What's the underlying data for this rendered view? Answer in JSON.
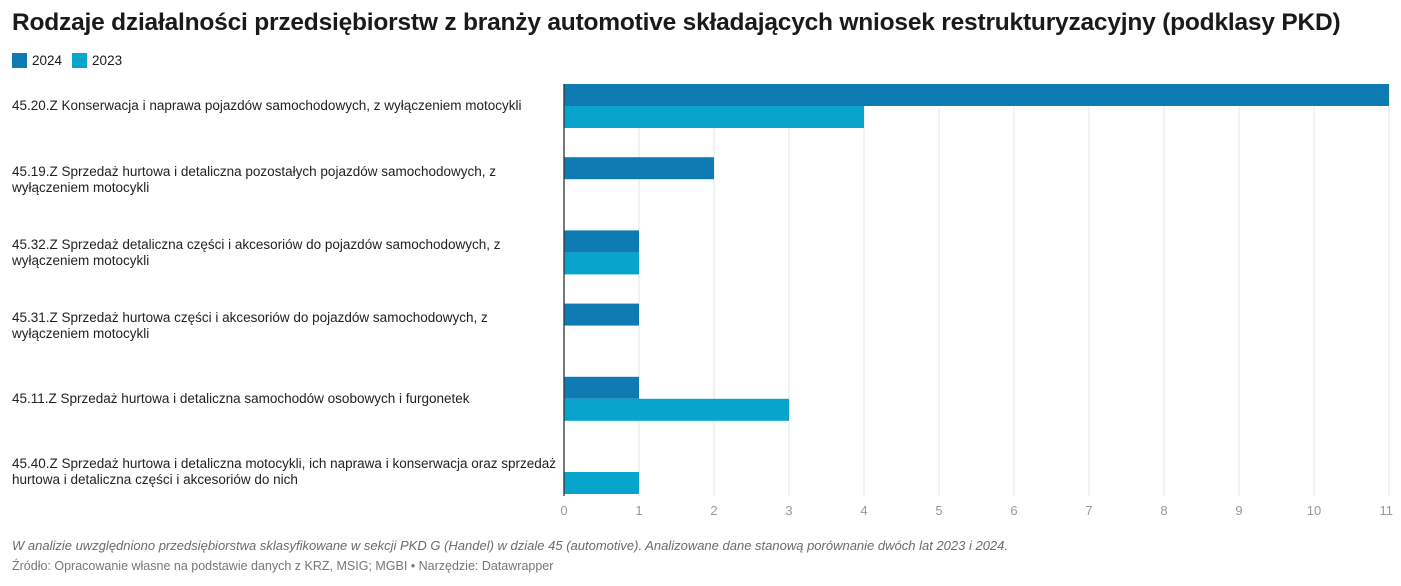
{
  "chart_data": {
    "type": "bar",
    "orientation": "horizontal",
    "title": "Rodzaje działalności przedsiębiorstw z branży automotive składających wniosek restrukturyzacyjny (podklasy PKD)",
    "categories": [
      "45.20.Z Konserwacja i naprawa pojazdów samochodowych, z wyłączeniem motocykli",
      "45.19.Z Sprzedaż hurtowa i detaliczna pozostałych pojazdów samochodowych, z wyłączeniem motocykli",
      "45.32.Z Sprzedaż detaliczna części i akcesoriów do pojazdów samochodowych, z wyłączeniem motocykli",
      "45.31.Z Sprzedaż hurtowa części i akcesoriów do pojazdów samochodowych, z wyłączeniem motocykli",
      "45.11.Z Sprzedaż hurtowa i detaliczna samochodów osobowych i furgonetek",
      "45.40.Z Sprzedaż hurtowa i detaliczna motocykli, ich naprawa i konserwacja oraz sprzedaż hurtowa i detaliczna części i akcesoriów do nich"
    ],
    "series": [
      {
        "name": "2024",
        "color": "#0f7bb3",
        "values": [
          11,
          2,
          1,
          1,
          1,
          0
        ]
      },
      {
        "name": "2023",
        "color": "#08a4cc",
        "values": [
          4,
          0,
          1,
          0,
          3,
          1
        ]
      }
    ],
    "xlim": [
      0,
      11
    ],
    "xticks": [
      "0",
      "1",
      "2",
      "3",
      "4",
      "5",
      "6",
      "7",
      "8",
      "9",
      "10",
      "11"
    ],
    "grid": true,
    "legend_position": "top-left"
  },
  "footer": {
    "note": "W analizie uwzględniono przedsiębiorstwa sklasyfikowane w sekcji PKD G (Handel) w dziale 45 (automotive). Analizowane dane stanową porównanie dwóch lat 2023 i 2024.",
    "source": "Źródło: Opracowanie własne na podstawie danych z KRZ, MSIG; MGBI • Narzędzie: Datawrapper"
  },
  "colors": {
    "gridline": "#e6e6e6",
    "axis": "#333333",
    "tick_text": "#999999"
  }
}
